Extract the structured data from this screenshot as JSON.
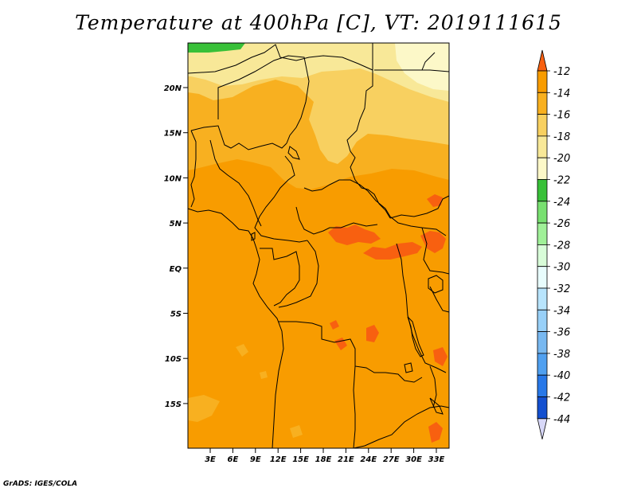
{
  "title": "Temperature at 400hPa [C], VT: 2019111615",
  "credit": "GrADS: IGES/COLA",
  "map": {
    "lat_labels": [
      "20N",
      "15N",
      "10N",
      "5N",
      "EQ",
      "5S",
      "10S",
      "15S"
    ],
    "lon_labels": [
      "3E",
      "6E",
      "9E",
      "12E",
      "15E",
      "18E",
      "21E",
      "24E",
      "27E",
      "30E",
      "33E"
    ],
    "region": "Central Africa",
    "field": "Temperature at 400hPa"
  },
  "colorbar": {
    "labels": [
      "-12",
      "-14",
      "-16",
      "-18",
      "-20",
      "-22",
      "-24",
      "-26",
      "-28",
      "-30",
      "-32",
      "-34",
      "-36",
      "-38",
      "-40",
      "-42",
      "-44"
    ],
    "colors": [
      "#f86010",
      "#f89c00",
      "#f8b020",
      "#f8d060",
      "#f8e898",
      "#fcf8c8",
      "#38c038",
      "#78e070",
      "#a0f098",
      "#d8fcd8",
      "#e8fcfc",
      "#b8e4fc",
      "#98d0f8",
      "#78b8f0",
      "#50a0f0",
      "#2878e8",
      "#1450d0",
      "#1030a8",
      "#0c0c7c",
      "#d8d8f8"
    ]
  },
  "colors": {
    "base_orange": "#f89c00",
    "warm_patch": "#f86010",
    "light_orange": "#f8b020",
    "yellow": "#f8d060",
    "pale_yellow": "#f8e898",
    "cream": "#fcf8c8",
    "green": "#38c038"
  }
}
